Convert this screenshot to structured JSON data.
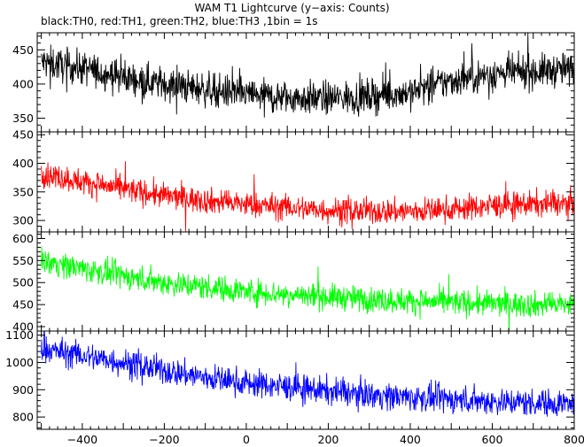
{
  "title": "WAM T1 Lightcurve (y−axis: Counts)",
  "subtitle": "black:TH0, red:TH1, green:TH2, blue:TH3 ,1bin = 1s",
  "chart_data": {
    "type": "line",
    "title": "WAM T1 Lightcurve (y−axis: Counts)",
    "subtitle": "black:TH0, red:TH1, green:TH2, blue:TH3 ,1bin = 1s",
    "xlabel": "",
    "ylabel": "",
    "xlim": [
      -510,
      800
    ],
    "x_ticks": [
      -400,
      -200,
      0,
      200,
      400,
      600,
      800
    ],
    "x_tick_labels": [
      "−400",
      "−200",
      "0",
      "200",
      "400",
      "600",
      "800"
    ],
    "bin_size_s": 1,
    "grid": false,
    "panels": [
      {
        "name": "TH0",
        "color": "#000000",
        "ylim": [
          330,
          475
        ],
        "y_ticks": [
          350,
          400,
          450
        ],
        "trend_x": [
          -500,
          -400,
          -300,
          -200,
          -100,
          0,
          100,
          200,
          300,
          400,
          500,
          600,
          700,
          800
        ],
        "trend_y": [
          432,
          423,
          410,
          400,
          392,
          385,
          380,
          379,
          382,
          388,
          405,
          415,
          418,
          422
        ],
        "noise_amplitude": 22
      },
      {
        "name": "TH1",
        "color": "#ff0000",
        "ylim": [
          280,
          455
        ],
        "y_ticks": [
          300,
          350,
          400,
          450
        ],
        "trend_x": [
          -500,
          -400,
          -300,
          -200,
          -100,
          0,
          100,
          200,
          300,
          400,
          500,
          600,
          700,
          800
        ],
        "trend_y": [
          382,
          368,
          355,
          343,
          335,
          328,
          323,
          318,
          316,
          316,
          320,
          326,
          329,
          330
        ],
        "noise_amplitude": 20
      },
      {
        "name": "TH2",
        "color": "#00ff00",
        "ylim": [
          390,
          615
        ],
        "y_ticks": [
          400,
          450,
          500,
          550,
          600
        ],
        "trend_x": [
          -500,
          -400,
          -300,
          -200,
          -100,
          0,
          100,
          200,
          300,
          400,
          500,
          600,
          700,
          800
        ],
        "trend_y": [
          550,
          532,
          515,
          500,
          490,
          480,
          473,
          468,
          462,
          458,
          455,
          452,
          450,
          450
        ],
        "noise_amplitude": 26
      },
      {
        "name": "TH3",
        "color": "#0000ff",
        "ylim": [
          755,
          1115
        ],
        "y_ticks": [
          800,
          900,
          1000,
          1100
        ],
        "trend_x": [
          -500,
          -400,
          -300,
          -200,
          -100,
          0,
          100,
          200,
          300,
          400,
          500,
          600,
          700,
          800
        ],
        "trend_y": [
          1050,
          1025,
          1000,
          970,
          945,
          925,
          910,
          895,
          882,
          872,
          865,
          858,
          852,
          850
        ],
        "noise_amplitude": 45
      }
    ]
  }
}
